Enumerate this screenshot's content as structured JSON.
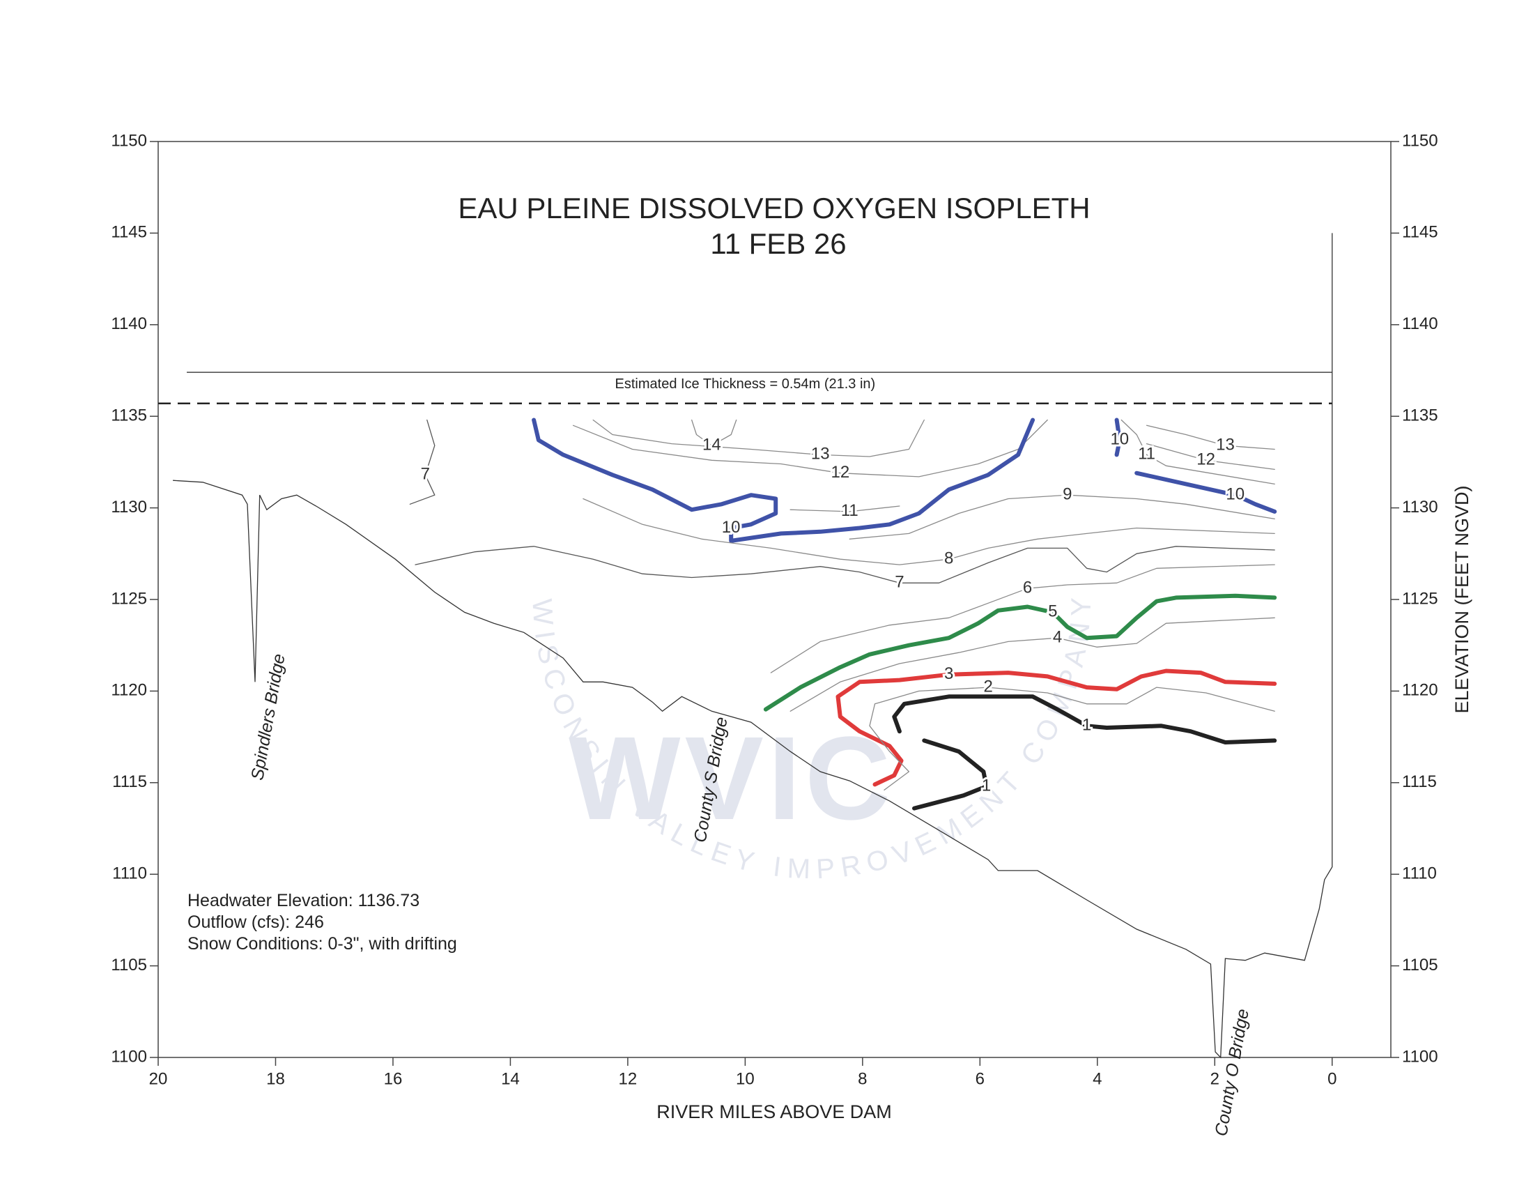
{
  "chart_data": {
    "type": "contour",
    "title": "EAU PLEINE DISSOLVED OXYGEN ISOPLETH",
    "subtitle": "11 FEB 26",
    "xlabel": "RIVER MILES ABOVE DAM",
    "y2label": "ELEVATION (FEET NGVD)",
    "xlim": [
      20,
      -1
    ],
    "ylim": [
      1100,
      1150
    ],
    "y2lim": [
      1100,
      1150
    ],
    "xticks": [
      20,
      18,
      16,
      14,
      12,
      10,
      8,
      6,
      4,
      2,
      0
    ],
    "yticks": [
      1100,
      1105,
      1110,
      1115,
      1120,
      1125,
      1130,
      1135,
      1140,
      1145,
      1150
    ],
    "y2ticks": [
      1100,
      1105,
      1110,
      1115,
      1120,
      1125,
      1130,
      1135,
      1140,
      1145,
      1150
    ],
    "ice_note": "Estimated Ice Thickness = 0.54m (21.3 in)",
    "notes": [
      "Headwater Elevation: 1136.73",
      "Outflow (cfs): 246",
      "Snow Conditions: 0-3\", with drifting"
    ],
    "watermark": [
      "WVIC",
      "WISCONSIN VALLEY IMPROVEMENT COMPANY"
    ],
    "water_surface": 1137.4,
    "ice_bottom": 1135.7,
    "bed": {
      "x": [
        19.75,
        19.24,
        18.57,
        18.48,
        18.35,
        18.27,
        18.15,
        17.9,
        17.64,
        17.31,
        16.8,
        15.96,
        15.29,
        14.78,
        14.28,
        13.77,
        13.1,
        12.76,
        12.42,
        11.92,
        11.58,
        11.41,
        11.08,
        10.57,
        9.9,
        9.23,
        8.72,
        8.22,
        7.54,
        6.7,
        5.86,
        5.69,
        5.02,
        4.18,
        3.33,
        2.49,
        2.07,
        1.99,
        1.9,
        1.82,
        1.48,
        1.15,
        0.47,
        0.22,
        0.13,
        0,
        0
      ],
      "y": [
        1131.5,
        1131.4,
        1130.7,
        1130.2,
        1120.5,
        1130.7,
        1129.9,
        1130.5,
        1130.7,
        1130.1,
        1129.1,
        1127.2,
        1125.4,
        1124.3,
        1123.7,
        1123.2,
        1121.8,
        1120.5,
        1120.5,
        1120.2,
        1119.4,
        1118.9,
        1119.7,
        1118.9,
        1118.3,
        1116.7,
        1115.6,
        1115.1,
        1114.0,
        1112.4,
        1110.8,
        1110.2,
        1110.2,
        1108.6,
        1107.0,
        1105.9,
        1105.1,
        1100.3,
        1100.0,
        1105.4,
        1105.3,
        1105.7,
        1105.3,
        1108.1,
        1109.7,
        1110.4,
        1145.0
      ]
    },
    "bridges": [
      {
        "label": "Spindlers Bridge",
        "mile": 18.15
      },
      {
        "label": "County S Bridge",
        "mile": 10.61
      },
      {
        "label": "County O Bridge",
        "mile": 1.73
      }
    ],
    "contours": [
      {
        "level": 14,
        "color": "#8a8a8a",
        "bold": false,
        "segments": [
          {
            "x": [
              10.91,
              10.83,
              10.57,
              10.24,
              10.15
            ],
            "y": [
              1134.8,
              1134.0,
              1133.4,
              1134.0,
              1134.8
            ]
          }
        ]
      },
      {
        "level": 13,
        "color": "#8a8a8a",
        "bold": false,
        "segments": [
          {
            "x": [
              12.59,
              12.26,
              11.25,
              9.9,
              8.72,
              7.88,
              7.21,
              6.95
            ],
            "y": [
              1134.8,
              1134.0,
              1133.5,
              1133.2,
              1132.9,
              1132.8,
              1133.2,
              1134.8
            ]
          },
          {
            "x": [
              3.16,
              2.49,
              1.82,
              0.98
            ],
            "y": [
              1134.5,
              1134.0,
              1133.4,
              1133.2
            ]
          }
        ]
      },
      {
        "level": 12,
        "color": "#8a8a8a",
        "bold": false,
        "segments": [
          {
            "x": [
              12.93,
              11.92,
              10.57,
              9.39,
              8.38,
              7.04,
              6.03,
              5.35,
              4.85
            ],
            "y": [
              1134.5,
              1133.2,
              1132.6,
              1132.4,
              1131.9,
              1131.7,
              1132.4,
              1133.2,
              1134.8
            ]
          },
          {
            "x": [
              3.16,
              2.15,
              0.98
            ],
            "y": [
              1133.5,
              1132.6,
              1132.1
            ]
          }
        ]
      },
      {
        "level": 11,
        "color": "#8a8a8a",
        "bold": false,
        "segments": [
          {
            "x": [
              9.23,
              8.22,
              7.37
            ],
            "y": [
              1129.9,
              1129.8,
              1130.1
            ]
          },
          {
            "x": [
              3.59,
              3.33,
              3.16,
              2.83,
              0.98
            ],
            "y": [
              1134.8,
              1134.0,
              1132.9,
              1132.3,
              1131.3
            ]
          }
        ]
      },
      {
        "level": 10,
        "color": "#3f52a8",
        "bold": true,
        "segments": [
          {
            "x": [
              13.6,
              13.52,
              13.1,
              12.26,
              11.58,
              10.91,
              10.4,
              9.9,
              9.48,
              9.48,
              9.9,
              10.24,
              10.24,
              9.39,
              8.72,
              8.05,
              7.54,
              7.04,
              6.53,
              5.86,
              5.35,
              5.1
            ],
            "y": [
              1134.8,
              1133.7,
              1132.9,
              1131.8,
              1131.0,
              1129.9,
              1130.2,
              1130.7,
              1130.5,
              1129.7,
              1129.1,
              1128.9,
              1128.2,
              1128.6,
              1128.7,
              1128.9,
              1129.1,
              1129.7,
              1131.0,
              1131.8,
              1132.9,
              1134.8
            ]
          },
          {
            "x": [
              3.67,
              3.62,
              3.67
            ],
            "y": [
              1134.8,
              1133.7,
              1132.9
            ]
          },
          {
            "x": [
              3.33,
              2.49,
              1.65,
              1.31,
              0.98
            ],
            "y": [
              1131.9,
              1131.3,
              1130.7,
              1130.2,
              1129.8
            ]
          }
        ]
      },
      {
        "level": 9,
        "color": "#8a8a8a",
        "bold": false,
        "segments": [
          {
            "x": [
              8.22,
              7.21,
              6.36,
              5.52,
              4.51,
              3.33,
              2.49,
              0.98
            ],
            "y": [
              1128.3,
              1128.6,
              1129.7,
              1130.5,
              1130.7,
              1130.5,
              1130.2,
              1129.4
            ]
          }
        ]
      },
      {
        "level": 8,
        "color": "#8a8a8a",
        "bold": false,
        "segments": [
          {
            "x": [
              12.76,
              11.75,
              10.74,
              9.56,
              8.38,
              7.37,
              6.53,
              5.86,
              5.02,
              4.18,
              3.33,
              0.98
            ],
            "y": [
              1130.5,
              1129.1,
              1128.3,
              1127.8,
              1127.2,
              1126.9,
              1127.2,
              1127.8,
              1128.3,
              1128.6,
              1128.9,
              1128.6
            ]
          }
        ]
      },
      {
        "level": 7,
        "color": "#555555",
        "bold": false,
        "segments": [
          {
            "x": [
              15.42,
              15.29,
              15.45,
              15.29,
              15.71
            ],
            "y": [
              1134.8,
              1133.4,
              1131.8,
              1130.7,
              1130.2
            ]
          },
          {
            "x": [
              15.62,
              14.61,
              13.6,
              12.59,
              11.75,
              10.91,
              9.9,
              8.72,
              8.05,
              7.37,
              6.7,
              5.86,
              5.19,
              4.51,
              4.18,
              3.84,
              3.33,
              2.66,
              0.98
            ],
            "y": [
              1126.9,
              1127.6,
              1127.9,
              1127.2,
              1126.4,
              1126.2,
              1126.4,
              1126.8,
              1126.5,
              1125.9,
              1125.9,
              1127.0,
              1127.8,
              1127.8,
              1126.7,
              1126.5,
              1127.5,
              1127.9,
              1127.7
            ]
          }
        ]
      },
      {
        "level": 6,
        "color": "#8a8a8a",
        "bold": false,
        "segments": [
          {
            "x": [
              9.56,
              8.72,
              7.54,
              6.53,
              5.86,
              5.19,
              4.51,
              3.67,
              2.99,
              0.98
            ],
            "y": [
              1121.0,
              1122.7,
              1123.6,
              1124.0,
              1124.8,
              1125.6,
              1125.8,
              1125.9,
              1126.7,
              1126.9
            ]
          }
        ]
      },
      {
        "level": 5,
        "color": "#2e8b4a",
        "bold": true,
        "segments": [
          {
            "x": [
              9.65,
              9.06,
              8.38,
              7.88,
              7.21,
              6.53,
              6.03,
              5.69,
              5.19,
              4.76,
              4.51,
              4.18,
              3.67,
              3.33,
              2.99,
              2.66,
              1.65,
              0.98
            ],
            "y": [
              1119.0,
              1120.2,
              1121.3,
              1122.0,
              1122.5,
              1122.9,
              1123.7,
              1124.4,
              1124.6,
              1124.3,
              1123.5,
              1122.9,
              1123.0,
              1124.0,
              1124.9,
              1125.1,
              1125.2,
              1125.1
            ]
          }
        ]
      },
      {
        "level": 4,
        "color": "#8a8a8a",
        "bold": false,
        "segments": [
          {
            "x": [
              9.23,
              8.38,
              7.37,
              6.36,
              5.52,
              4.68,
              4.01,
              3.33,
              2.83,
              0.98
            ],
            "y": [
              1118.9,
              1120.5,
              1121.5,
              1122.1,
              1122.7,
              1122.9,
              1122.4,
              1122.6,
              1123.7,
              1124.0
            ]
          }
        ]
      },
      {
        "level": 3,
        "color": "#e03a3a",
        "bold": true,
        "segments": [
          {
            "x": [
              7.79,
              7.46,
              7.34,
              7.54,
              8.05,
              8.38,
              8.42,
              8.05,
              7.37,
              6.53,
              5.52,
              4.85,
              4.18,
              3.67,
              3.25,
              2.83,
              2.24,
              1.82,
              0.98
            ],
            "y": [
              1114.9,
              1115.4,
              1116.2,
              1117.0,
              1117.8,
              1118.6,
              1119.7,
              1120.5,
              1120.6,
              1120.9,
              1121.0,
              1120.8,
              1120.2,
              1120.1,
              1120.8,
              1121.1,
              1121.0,
              1120.5,
              1120.4
            ]
          }
        ]
      },
      {
        "level": 2,
        "color": "#8a8a8a",
        "bold": false,
        "segments": [
          {
            "x": [
              7.63,
              7.21,
              7.54,
              7.88,
              7.79,
              7.04,
              5.86,
              4.85,
              4.18,
              3.5,
              2.99,
              2.15,
              0.98
            ],
            "y": [
              1114.6,
              1115.6,
              1116.7,
              1118.1,
              1119.3,
              1120.0,
              1120.2,
              1119.9,
              1119.3,
              1119.3,
              1120.2,
              1119.9,
              1118.9
            ]
          }
        ]
      },
      {
        "level": 1,
        "color": "#222222",
        "bold": true,
        "segments": [
          {
            "x": [
              7.37,
              7.46,
              7.29,
              6.53,
              5.1,
              4.68,
              4.18,
              3.84,
              2.91,
              2.41,
              1.82,
              0.98
            ],
            "y": [
              1117.8,
              1118.6,
              1119.3,
              1119.7,
              1119.7,
              1119.0,
              1118.1,
              1118.0,
              1118.1,
              1117.8,
              1117.2,
              1117.3
            ]
          },
          {
            "x": [
              6.95,
              6.36,
              5.94,
              5.89,
              6.28,
              7.12
            ],
            "y": [
              1117.3,
              1116.7,
              1115.6,
              1114.8,
              1114.3,
              1113.6
            ]
          }
        ]
      }
    ]
  }
}
